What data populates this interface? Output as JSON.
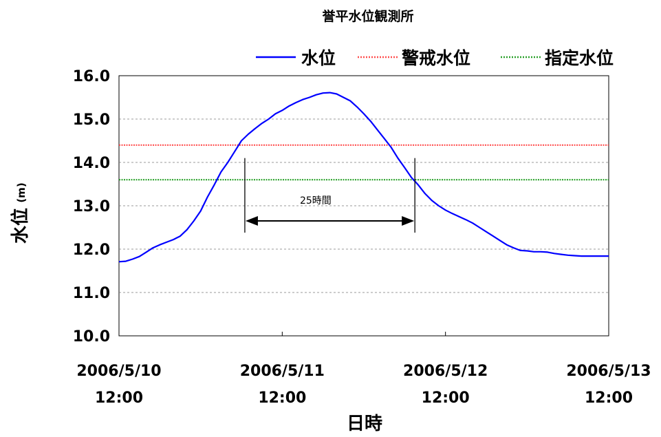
{
  "chart_data": {
    "type": "line",
    "title": "誉平水位観測所",
    "xlabel": "日時",
    "ylabel": "水位",
    "ylabel_unit": "(m)",
    "ylim": [
      10.0,
      16.0
    ],
    "y_ticks": [
      "10.0",
      "11.0",
      "12.0",
      "13.0",
      "14.0",
      "15.0",
      "16.0"
    ],
    "x_range_hours": [
      0,
      72
    ],
    "x_ticks": [
      {
        "line1": "2006/5/10",
        "line2": "12:00"
      },
      {
        "line1": "2006/5/11",
        "line2": "12:00"
      },
      {
        "line1": "2006/5/12",
        "line2": "12:00"
      },
      {
        "line1": "2006/5/13",
        "line2": "12:00"
      }
    ],
    "grid": "horizontal-dashed",
    "legend_position": "top-right",
    "series": [
      {
        "name": "水位",
        "color": "#0000ff",
        "style": "solid",
        "x": [
          0,
          1,
          2,
          3,
          4,
          5,
          6,
          7,
          8,
          9,
          10,
          11,
          12,
          13,
          14,
          15,
          16,
          17,
          18,
          19,
          20,
          21,
          22,
          23,
          24,
          25,
          26,
          27,
          28,
          29,
          30,
          31,
          32,
          33,
          34,
          35,
          36,
          37,
          38,
          39,
          40,
          41,
          42,
          43,
          44,
          45,
          46,
          47,
          48,
          49,
          50,
          51,
          52,
          53,
          54,
          55,
          56,
          57,
          58,
          59,
          60,
          61,
          62,
          63,
          64,
          65,
          66,
          67,
          68,
          69,
          70,
          71,
          72
        ],
        "values": [
          11.71,
          11.72,
          11.77,
          11.83,
          11.93,
          12.03,
          12.1,
          12.16,
          12.22,
          12.3,
          12.45,
          12.65,
          12.88,
          13.2,
          13.48,
          13.78,
          14.0,
          14.25,
          14.5,
          14.65,
          14.78,
          14.9,
          15.0,
          15.12,
          15.2,
          15.3,
          15.38,
          15.45,
          15.5,
          15.56,
          15.6,
          15.61,
          15.58,
          15.5,
          15.42,
          15.28,
          15.12,
          14.95,
          14.75,
          14.55,
          14.35,
          14.1,
          13.88,
          13.65,
          13.48,
          13.28,
          13.12,
          13.0,
          12.9,
          12.82,
          12.75,
          12.68,
          12.6,
          12.5,
          12.4,
          12.3,
          12.2,
          12.1,
          12.03,
          11.97,
          11.96,
          11.94,
          11.94,
          11.93,
          11.9,
          11.88,
          11.86,
          11.85,
          11.84,
          11.84,
          11.84,
          11.84,
          11.84
        ]
      },
      {
        "name": "警戒水位",
        "color": "#ff4d4d",
        "style": "dotted",
        "value": 14.4
      },
      {
        "name": "指定水位",
        "color": "#2aa02a",
        "style": "dotted",
        "value": 13.6
      }
    ],
    "annotation": {
      "text": "25時間",
      "from_hour": 18.5,
      "to_hour": 43.5,
      "y": 12.65,
      "marker_top": 14.1,
      "marker_bottom": 12.38
    }
  }
}
